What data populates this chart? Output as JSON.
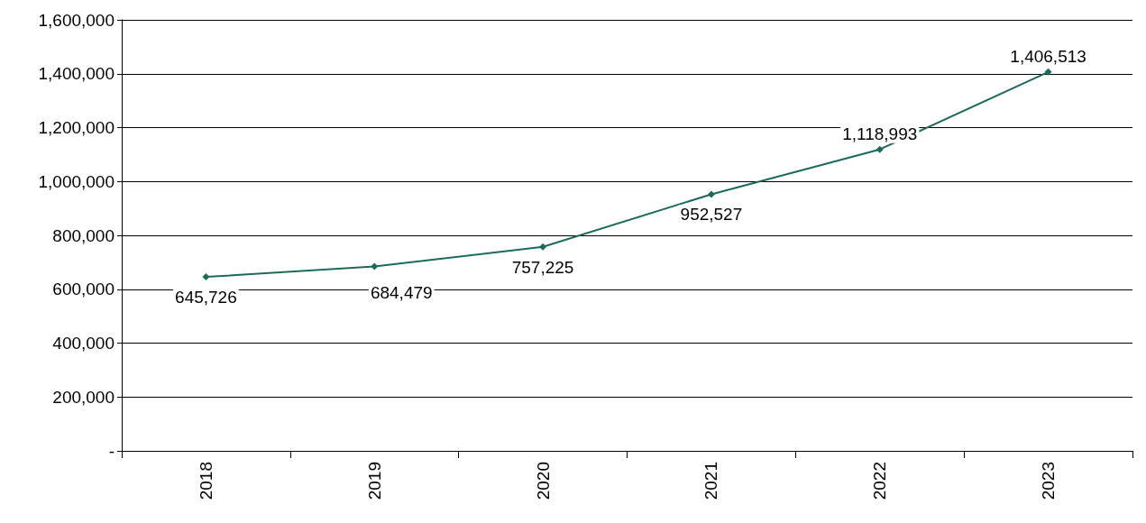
{
  "chart_data": {
    "type": "line",
    "categories": [
      "2018",
      "2019",
      "2020",
      "2021",
      "2022",
      "2023"
    ],
    "series": [
      {
        "color": "#1b6b5c",
        "values": [
          645726,
          684479,
          757225,
          952527,
          1118993,
          1406513
        ],
        "value_labels": [
          "645,726",
          "684,479",
          "757,225",
          "952,527",
          "1,118,993",
          "1,406,513"
        ]
      }
    ],
    "ylim": [
      0,
      1600000
    ],
    "yticks": [
      {
        "value": 0,
        "label": "-"
      },
      {
        "value": 200000,
        "label": "200,000"
      },
      {
        "value": 400000,
        "label": "400,000"
      },
      {
        "value": 600000,
        "label": "600,000"
      },
      {
        "value": 800000,
        "label": "800,000"
      },
      {
        "value": 1000000,
        "label": "1,000,000"
      },
      {
        "value": 1200000,
        "label": "1,200,000"
      },
      {
        "value": 1400000,
        "label": "1,400,000"
      },
      {
        "value": 1600000,
        "label": "1,600,000"
      }
    ],
    "grid": "y",
    "marker": "diamond",
    "line_style": "solid"
  }
}
